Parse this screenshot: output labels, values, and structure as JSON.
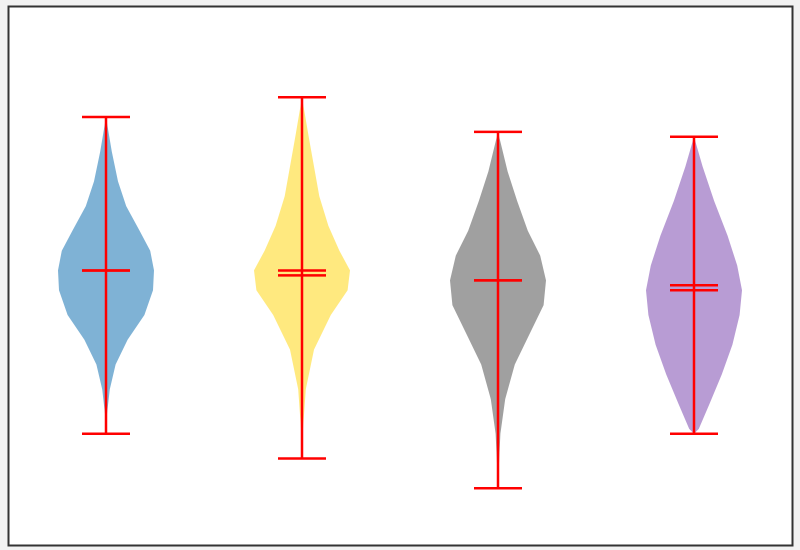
{
  "chart_data": {
    "type": "violin",
    "title": "",
    "xlabel": "",
    "ylabel": "",
    "axes_visible": false,
    "grid": false,
    "ylim": [
      0,
      10
    ],
    "stat_color": "#ff0000",
    "violins": [
      {
        "color": "#7fb2d5",
        "min": 3.6,
        "max": 10.0,
        "mean": 6.9,
        "median": 6.9,
        "density": [
          [
            3.6,
            0.0
          ],
          [
            4.0,
            0.02
          ],
          [
            4.5,
            0.08
          ],
          [
            5.0,
            0.2
          ],
          [
            5.5,
            0.45
          ],
          [
            6.0,
            0.8
          ],
          [
            6.5,
            0.98
          ],
          [
            6.9,
            1.0
          ],
          [
            7.3,
            0.92
          ],
          [
            7.7,
            0.7
          ],
          [
            8.2,
            0.42
          ],
          [
            8.7,
            0.25
          ],
          [
            9.3,
            0.12
          ],
          [
            10.0,
            0.0
          ]
        ]
      },
      {
        "color": "#ffe97f",
        "min": 3.1,
        "max": 10.4,
        "mean": 6.8,
        "median": 6.9,
        "density": [
          [
            3.1,
            0.0
          ],
          [
            3.7,
            0.02
          ],
          [
            4.5,
            0.08
          ],
          [
            5.3,
            0.25
          ],
          [
            6.0,
            0.6
          ],
          [
            6.5,
            0.95
          ],
          [
            6.9,
            1.0
          ],
          [
            7.3,
            0.78
          ],
          [
            7.8,
            0.55
          ],
          [
            8.4,
            0.36
          ],
          [
            9.0,
            0.25
          ],
          [
            9.6,
            0.14
          ],
          [
            10.4,
            0.0
          ]
        ]
      },
      {
        "color": "#a0a0a0",
        "min": 2.5,
        "max": 9.7,
        "mean": 6.7,
        "median": 6.7,
        "density": [
          [
            2.5,
            0.0
          ],
          [
            3.0,
            0.02
          ],
          [
            3.6,
            0.05
          ],
          [
            4.3,
            0.15
          ],
          [
            5.0,
            0.35
          ],
          [
            5.6,
            0.65
          ],
          [
            6.2,
            0.95
          ],
          [
            6.7,
            1.0
          ],
          [
            7.2,
            0.88
          ],
          [
            7.7,
            0.62
          ],
          [
            8.3,
            0.4
          ],
          [
            8.9,
            0.2
          ],
          [
            9.7,
            0.0
          ]
        ]
      },
      {
        "color": "#b89cd4",
        "min": 3.6,
        "max": 9.6,
        "mean": 6.6,
        "median": 6.5,
        "density": [
          [
            3.6,
            0.0
          ],
          [
            3.7,
            0.1
          ],
          [
            4.2,
            0.32
          ],
          [
            4.8,
            0.58
          ],
          [
            5.4,
            0.8
          ],
          [
            6.0,
            0.95
          ],
          [
            6.5,
            1.0
          ],
          [
            7.0,
            0.9
          ],
          [
            7.6,
            0.7
          ],
          [
            8.3,
            0.42
          ],
          [
            9.0,
            0.18
          ],
          [
            9.6,
            0.0
          ]
        ]
      }
    ]
  }
}
